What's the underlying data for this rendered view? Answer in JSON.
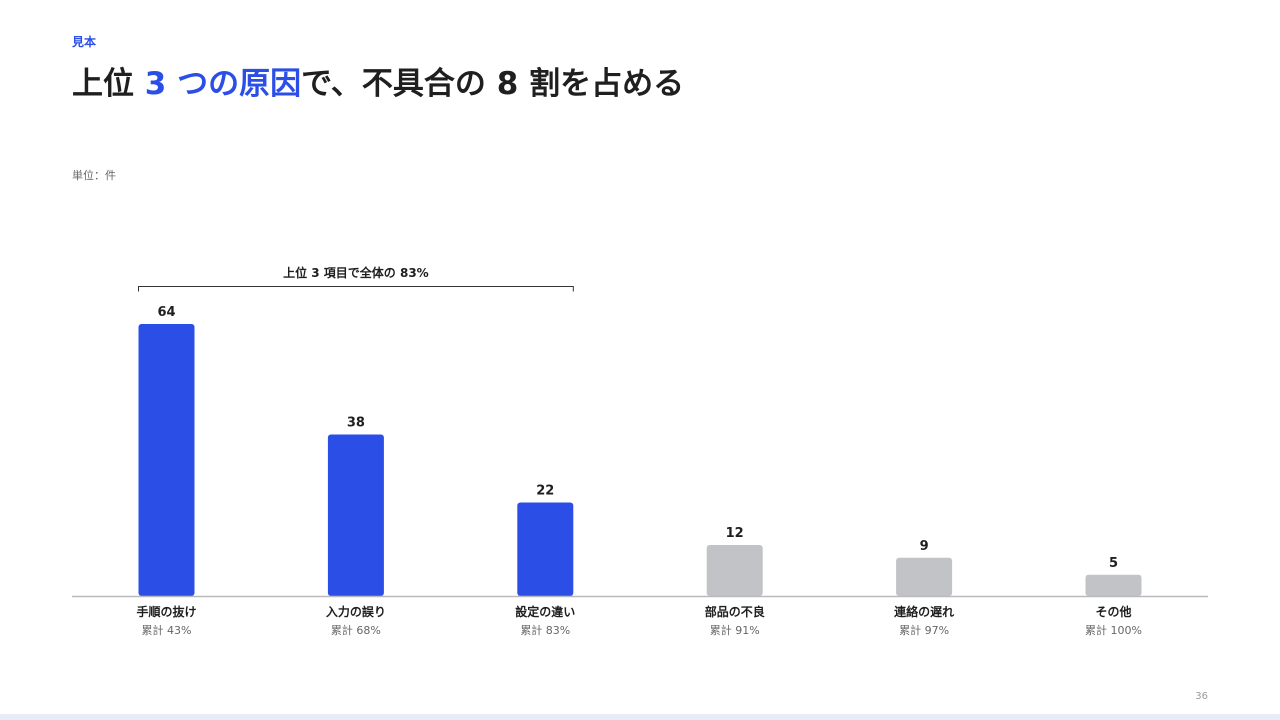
{
  "header": {
    "tag": "見本",
    "title_prefix": "上位 ",
    "title_accent": "3 つの原因",
    "title_suffix": "で、不具合の 8 割を占める",
    "unit": "単位：件"
  },
  "page_number": "36",
  "colors": {
    "accent": "#2b4ee6",
    "muted": "#c2c3c7",
    "text": "#1f1f1f",
    "subtext": "#666666"
  },
  "chart_data": {
    "type": "bar",
    "title": "",
    "xlabel": "",
    "ylabel": "",
    "ylim": [
      0,
      64
    ],
    "grid": false,
    "categories": [
      "手順の抜け",
      "入力の誤り",
      "設定の違い",
      "部品の不良",
      "連絡の遅れ",
      "その他"
    ],
    "values": [
      64,
      38,
      22,
      12,
      9,
      5
    ],
    "cumulative_labels": [
      "累計 43%",
      "累計 68%",
      "累計 83%",
      "累計 91%",
      "累計 97%",
      "累計 100%"
    ],
    "highlight_count": 3,
    "bracket_label": "上位 3 項目で全体の 83%"
  }
}
